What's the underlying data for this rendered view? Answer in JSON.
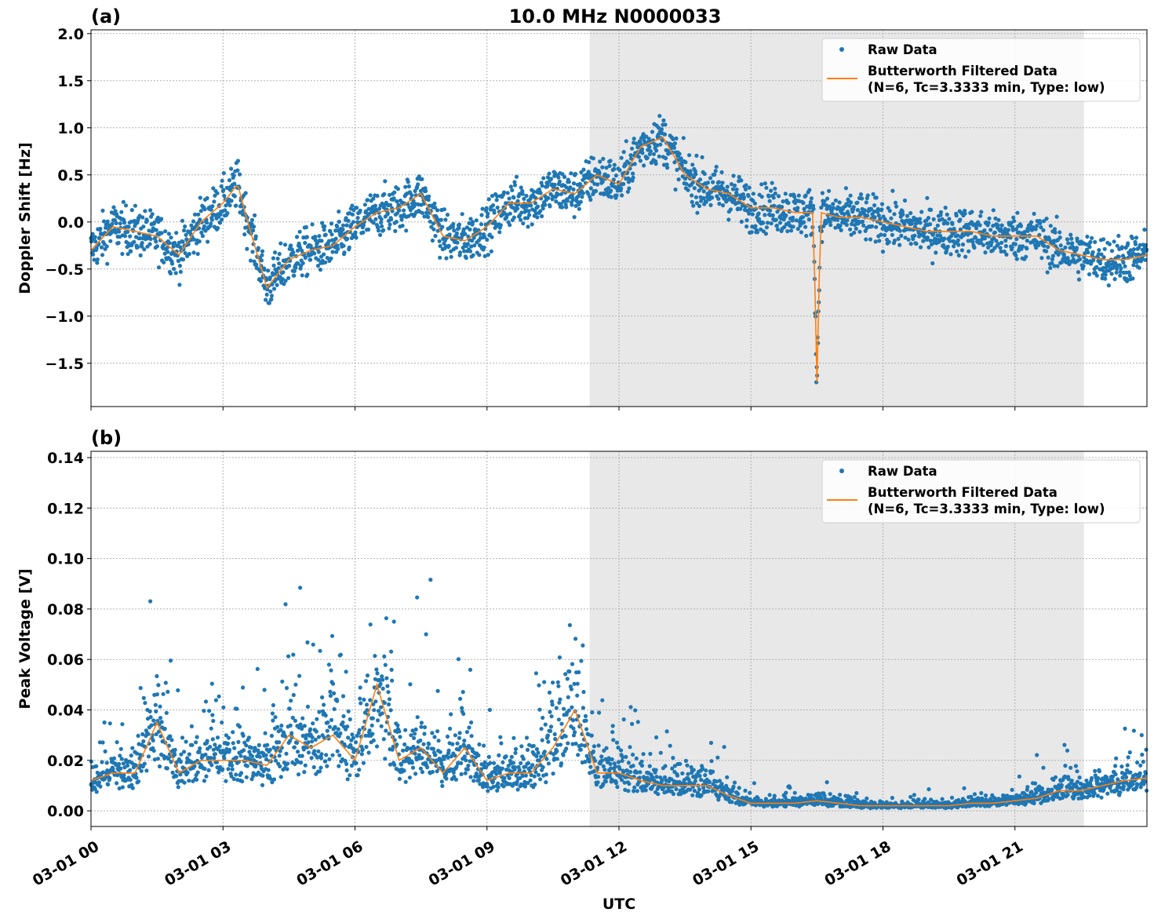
{
  "title": "10.0 MHz N0000033",
  "xlabel": "UTC",
  "x_tick_labels": [
    "03-01 00",
    "03-01 03",
    "03-01 06",
    "03-01 09",
    "03-01 12",
    "03-01 15",
    "03-01 18",
    "03-01 21"
  ],
  "colors": {
    "raw": "#1f77b4",
    "filtered": "#ff7f0e",
    "shade": "#e8e8e8"
  },
  "chart_data": [
    {
      "type": "scatter",
      "panel_label": "(a)",
      "ylabel": "Doppler Shift [Hz]",
      "xlim": [
        "03-01 00:00",
        "03-02 00:00"
      ],
      "ylim": [
        -1.96,
        2.04
      ],
      "y_ticks": [
        "2.0",
        "1.5",
        "1.0",
        "0.5",
        "0.0",
        "−0.5",
        "−1.0",
        "−1.5"
      ],
      "y_tick_values": [
        2.0,
        1.5,
        1.0,
        0.5,
        0.0,
        -0.5,
        -1.0,
        -1.5
      ],
      "grid": true,
      "shaded_span": [
        "11:20",
        "22:34"
      ],
      "legend": {
        "placement": "upper-right",
        "raw": "Raw Data",
        "filtered_line1": "Butterworth Filtered Data",
        "filtered_line2": "(N=6, Tc=3.3333 min, Type: low)"
      },
      "raw_spread": 0.18,
      "filtered": {
        "x": [
          "00:00",
          "00:30",
          "01:00",
          "01:30",
          "02:00",
          "02:30",
          "03:00",
          "03:20",
          "03:30",
          "04:00",
          "04:30",
          "05:00",
          "05:30",
          "06:00",
          "06:30",
          "07:00",
          "07:30",
          "08:00",
          "08:30",
          "09:00",
          "09:30",
          "10:00",
          "10:30",
          "11:00",
          "11:30",
          "12:00",
          "12:30",
          "13:00",
          "13:30",
          "14:00",
          "14:30",
          "15:00",
          "15:30",
          "16:00",
          "16:25",
          "16:30",
          "16:35",
          "17:00",
          "17:30",
          "18:00",
          "18:30",
          "19:00",
          "19:30",
          "20:00",
          "20:30",
          "21:00",
          "21:30",
          "22:00",
          "22:30",
          "23:00",
          "23:30",
          "24:00"
        ],
        "y": [
          -0.3,
          -0.05,
          -0.1,
          -0.15,
          -0.35,
          0.0,
          0.2,
          0.4,
          0.1,
          -0.7,
          -0.4,
          -0.3,
          -0.25,
          -0.05,
          0.1,
          0.15,
          0.3,
          -0.15,
          -0.2,
          -0.05,
          0.2,
          0.2,
          0.35,
          0.3,
          0.5,
          0.4,
          0.8,
          0.9,
          0.5,
          0.35,
          0.3,
          0.15,
          0.15,
          0.1,
          0.1,
          -1.7,
          0.1,
          0.05,
          0.05,
          0.0,
          -0.05,
          -0.1,
          -0.1,
          -0.1,
          -0.15,
          -0.15,
          -0.15,
          -0.3,
          -0.35,
          -0.4,
          -0.4,
          -0.35
        ]
      }
    },
    {
      "type": "scatter",
      "panel_label": "(b)",
      "ylabel": "Peak Voltage [V]",
      "xlim": [
        "03-01 00:00",
        "03-02 00:00"
      ],
      "ylim": [
        -0.0062,
        0.1425
      ],
      "y_ticks": [
        "0.14",
        "0.12",
        "0.10",
        "0.08",
        "0.06",
        "0.04",
        "0.02",
        "0.00"
      ],
      "y_tick_values": [
        0.14,
        0.12,
        0.1,
        0.08,
        0.06,
        0.04,
        0.02,
        0.0
      ],
      "grid": true,
      "shaded_span": [
        "11:20",
        "22:34"
      ],
      "legend": {
        "placement": "upper-right",
        "raw": "Raw Data",
        "filtered_line1": "Butterworth Filtered Data",
        "filtered_line2": "(N=6, Tc=3.3333 min, Type: low)"
      },
      "raw_spread": 0.6,
      "filtered": {
        "x": [
          "00:00",
          "00:30",
          "01:00",
          "01:30",
          "02:00",
          "02:30",
          "03:00",
          "03:30",
          "04:00",
          "04:30",
          "05:00",
          "05:30",
          "06:00",
          "06:30",
          "07:00",
          "07:30",
          "08:00",
          "08:30",
          "09:00",
          "09:30",
          "10:00",
          "10:30",
          "11:00",
          "11:30",
          "12:00",
          "12:30",
          "13:00",
          "13:30",
          "14:00",
          "14:30",
          "15:00",
          "15:30",
          "16:00",
          "16:30",
          "17:00",
          "17:30",
          "18:00",
          "18:30",
          "19:00",
          "19:30",
          "20:00",
          "20:30",
          "21:00",
          "21:30",
          "22:00",
          "22:30",
          "23:00",
          "23:30",
          "24:00"
        ],
        "y": [
          0.012,
          0.015,
          0.015,
          0.035,
          0.015,
          0.02,
          0.02,
          0.02,
          0.018,
          0.03,
          0.025,
          0.03,
          0.02,
          0.05,
          0.02,
          0.025,
          0.015,
          0.025,
          0.012,
          0.015,
          0.015,
          0.025,
          0.04,
          0.015,
          0.015,
          0.012,
          0.01,
          0.01,
          0.01,
          0.006,
          0.003,
          0.003,
          0.003,
          0.004,
          0.003,
          0.002,
          0.002,
          0.002,
          0.002,
          0.002,
          0.003,
          0.003,
          0.004,
          0.005,
          0.008,
          0.008,
          0.01,
          0.012,
          0.013
        ]
      }
    }
  ]
}
